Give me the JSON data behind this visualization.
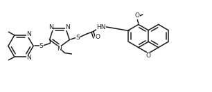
{
  "bg_color": "#ffffff",
  "line_color": "#1a1a1a",
  "line_width": 1.1,
  "figsize": [
    3.06,
    1.33
  ],
  "dpi": 100,
  "font_size": 6.5,
  "xlim": [
    0,
    1.0
  ],
  "ylim": [
    0,
    0.44
  ]
}
